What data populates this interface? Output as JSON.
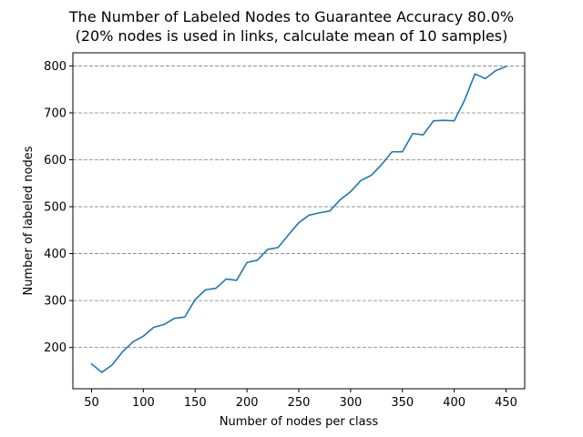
{
  "chart_data": {
    "type": "line",
    "title": "The Number of Labeled Nodes to Guarantee Accuracy 80.0%",
    "subtitle": "(20% nodes is used in links, calculate mean of 10 samples)",
    "xlabel": "Number of nodes per class",
    "ylabel": "Number of labeled nodes",
    "xlim": [
      32,
      468
    ],
    "ylim": [
      112,
      828
    ],
    "xticks": [
      50,
      100,
      150,
      200,
      250,
      300,
      350,
      400,
      450
    ],
    "yticks": [
      200,
      300,
      400,
      500,
      600,
      700,
      800
    ],
    "grid": "horizontal dashed",
    "line_color": "#1f77b4",
    "series": [
      {
        "x": [
          50,
          60,
          70,
          80,
          90,
          100,
          110,
          120,
          130,
          140,
          150,
          160,
          170,
          180,
          190,
          200,
          210,
          220,
          230,
          240,
          250,
          260,
          270,
          280,
          290,
          300,
          310,
          320,
          330,
          340,
          350,
          360,
          370,
          380,
          390,
          400,
          410,
          420,
          430,
          440,
          450
        ],
        "values": [
          165,
          147,
          163,
          191,
          212,
          224,
          243,
          249,
          262,
          265,
          302,
          323,
          326,
          346,
          343,
          381,
          386,
          409,
          413,
          440,
          466,
          482,
          487,
          491,
          515,
          532,
          556,
          567,
          590,
          617,
          617,
          656,
          653,
          683,
          684,
          683,
          727,
          783,
          773,
          790,
          799
        ]
      }
    ]
  }
}
